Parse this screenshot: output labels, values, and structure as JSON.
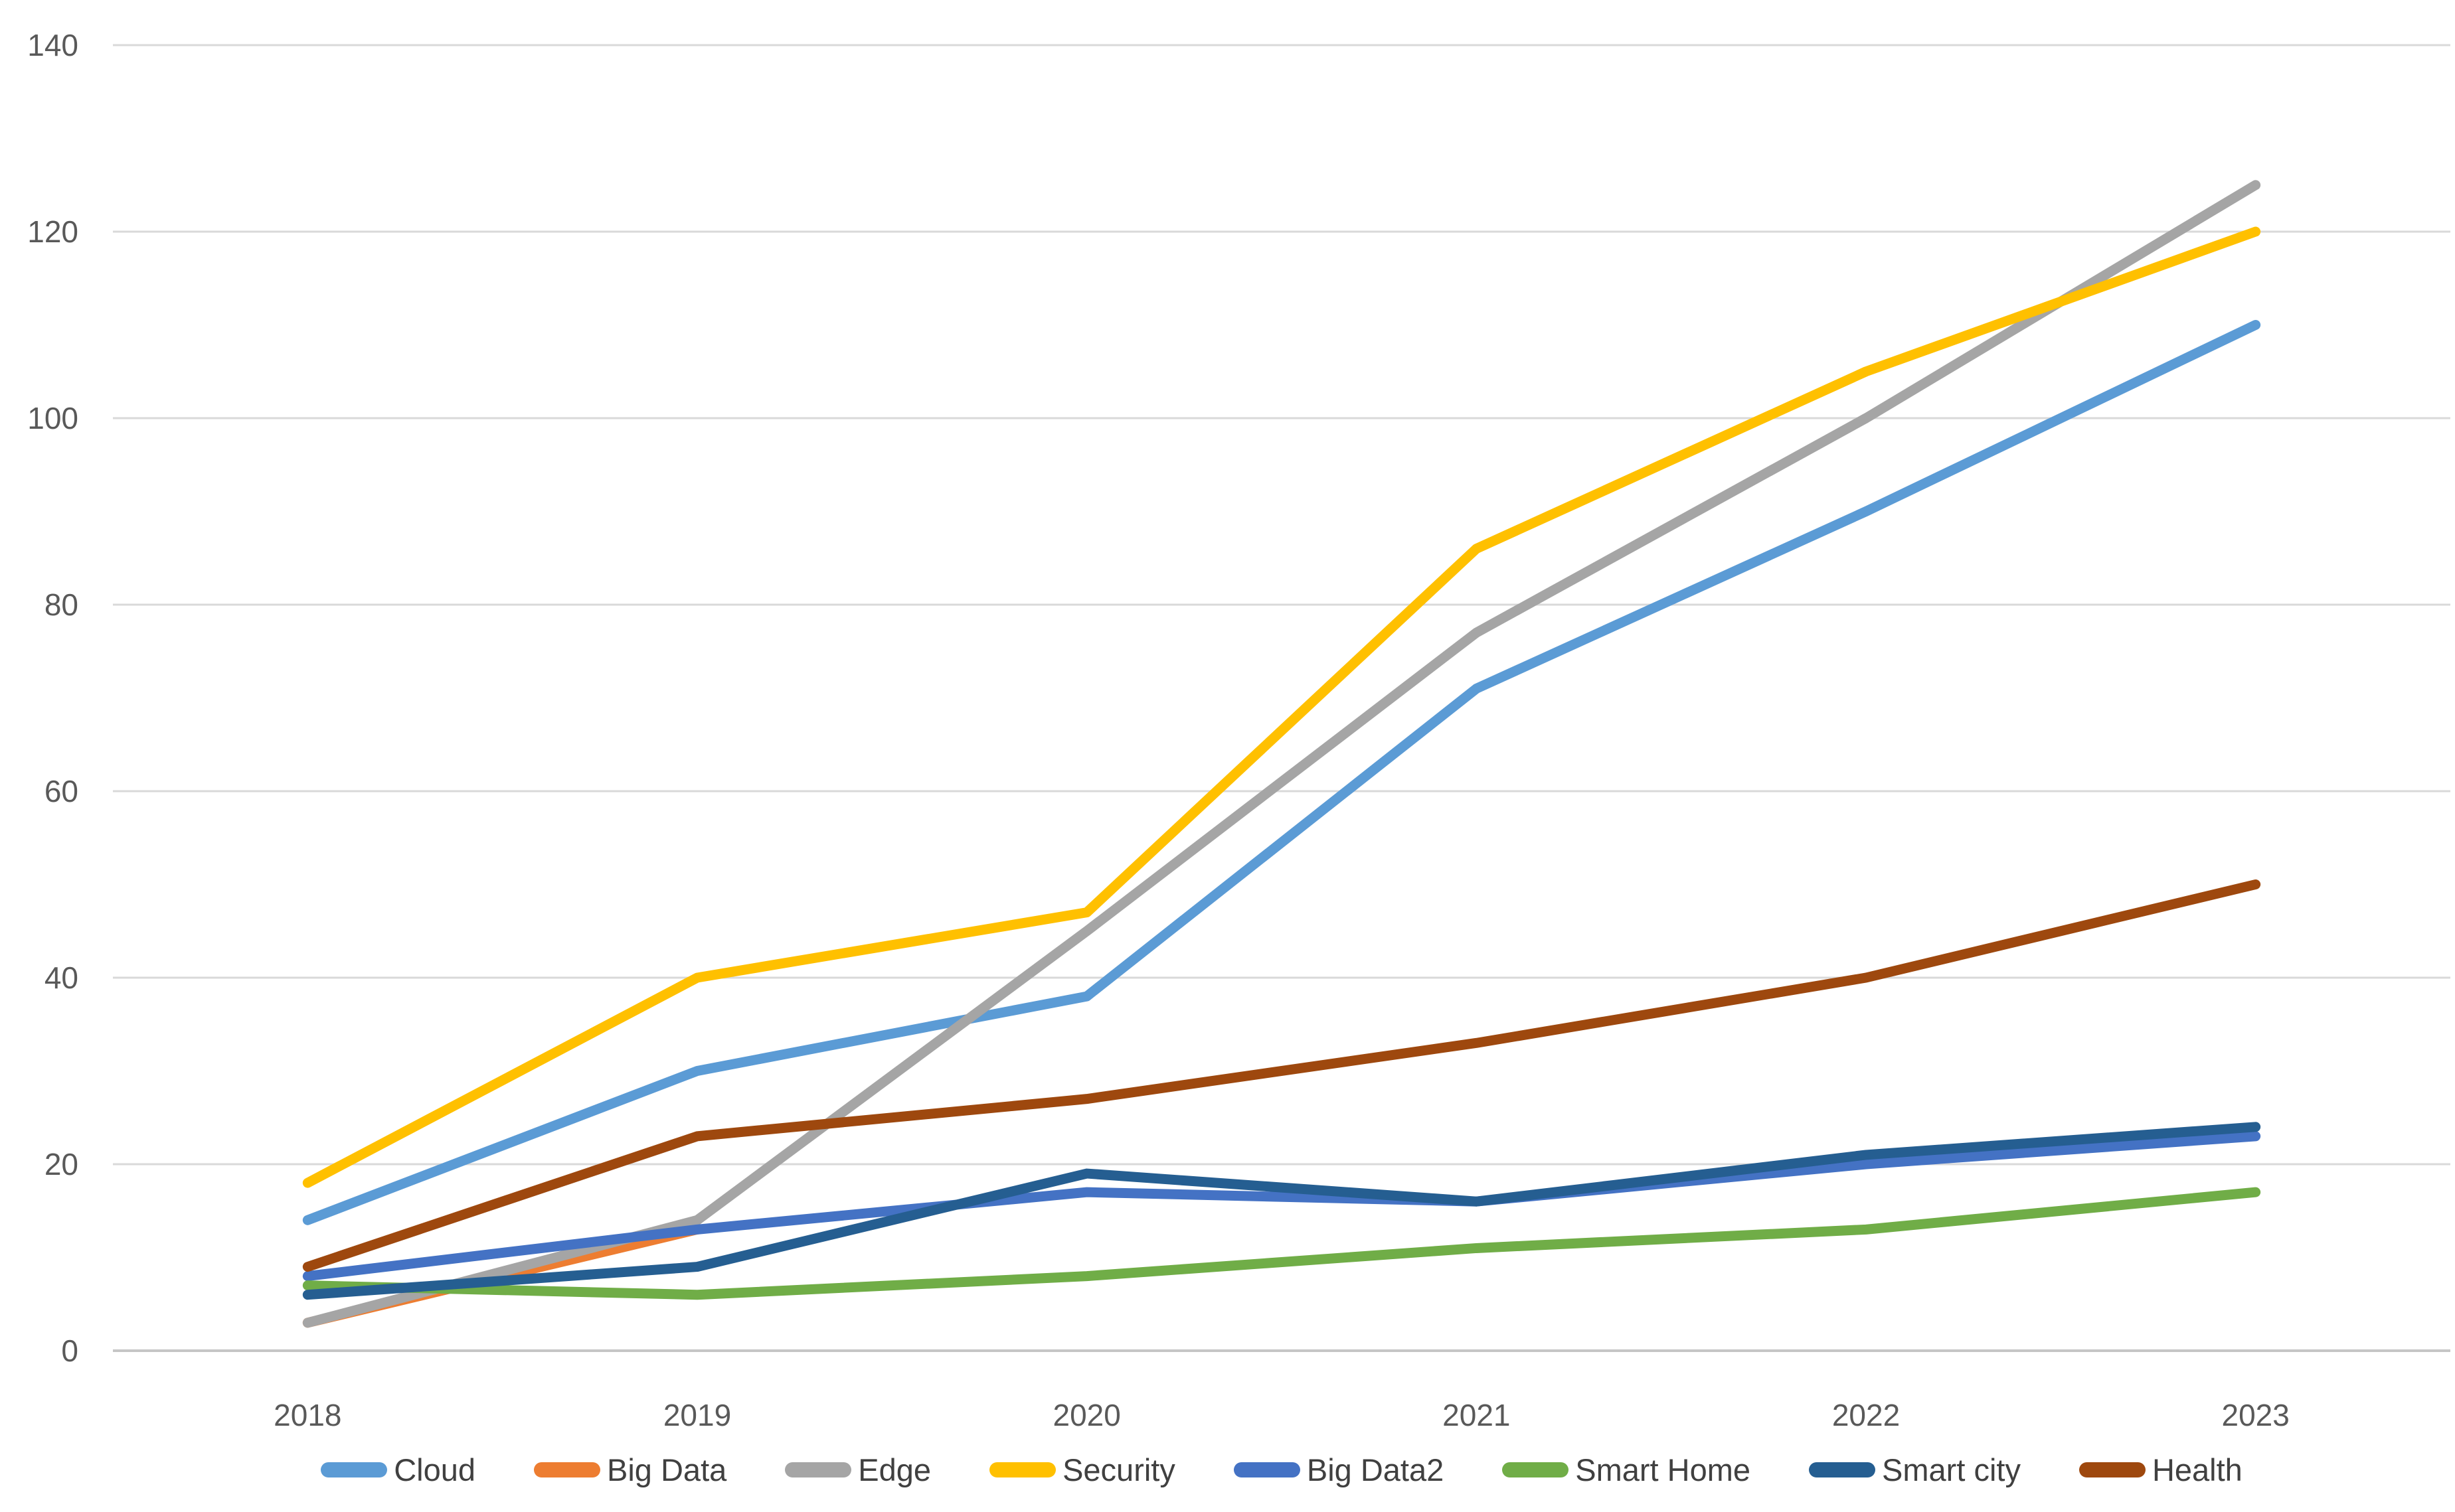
{
  "chart_data": {
    "type": "line",
    "title": "",
    "categories": [
      "2018",
      "2019",
      "2020",
      "2021",
      "2022",
      "2023"
    ],
    "series": [
      {
        "name": "Cloud",
        "color": "#5B9BD5",
        "values": [
          14,
          30,
          38,
          71,
          90,
          110
        ]
      },
      {
        "name": "Big Data",
        "color": "#ED7D31",
        "values": [
          3,
          13,
          null,
          null,
          null,
          null
        ]
      },
      {
        "name": "Edge",
        "color": "#A5A5A5",
        "values": [
          3,
          14,
          45,
          77,
          100,
          125
        ]
      },
      {
        "name": "Security",
        "color": "#FFC000",
        "values": [
          18,
          40,
          47,
          86,
          105,
          120
        ]
      },
      {
        "name": "Big Data2",
        "color": "#4472C4",
        "values": [
          8,
          13,
          17,
          16,
          20,
          23
        ]
      },
      {
        "name": "Smart Home",
        "color": "#70AD47",
        "values": [
          7,
          6,
          8,
          11,
          13,
          17
        ]
      },
      {
        "name": "Smart city",
        "color": "#255E91",
        "values": [
          6,
          9,
          19,
          16,
          21,
          24
        ]
      },
      {
        "name": "Health",
        "color": "#9E480E",
        "values": [
          9,
          23,
          27,
          33,
          40,
          50
        ]
      }
    ],
    "y_axis": {
      "min": 0,
      "max": 140,
      "step": 20,
      "ticks": [
        0,
        20,
        40,
        60,
        80,
        100,
        120,
        140
      ]
    },
    "x_axis": {
      "ticks": [
        "2018",
        "2019",
        "2020",
        "2021",
        "2022",
        "2023"
      ]
    },
    "grid": true,
    "legend_position": "bottom",
    "note": "Big Data line is only visible from 2018 to 2019, where it merges under Big Data2"
  },
  "style": {
    "background": "#FFFFFF",
    "gridline_color": "#D9D9D9",
    "axis_line_color": "#C6C6C6",
    "tick_label_color": "#595959",
    "legend_label_color": "#404040"
  }
}
